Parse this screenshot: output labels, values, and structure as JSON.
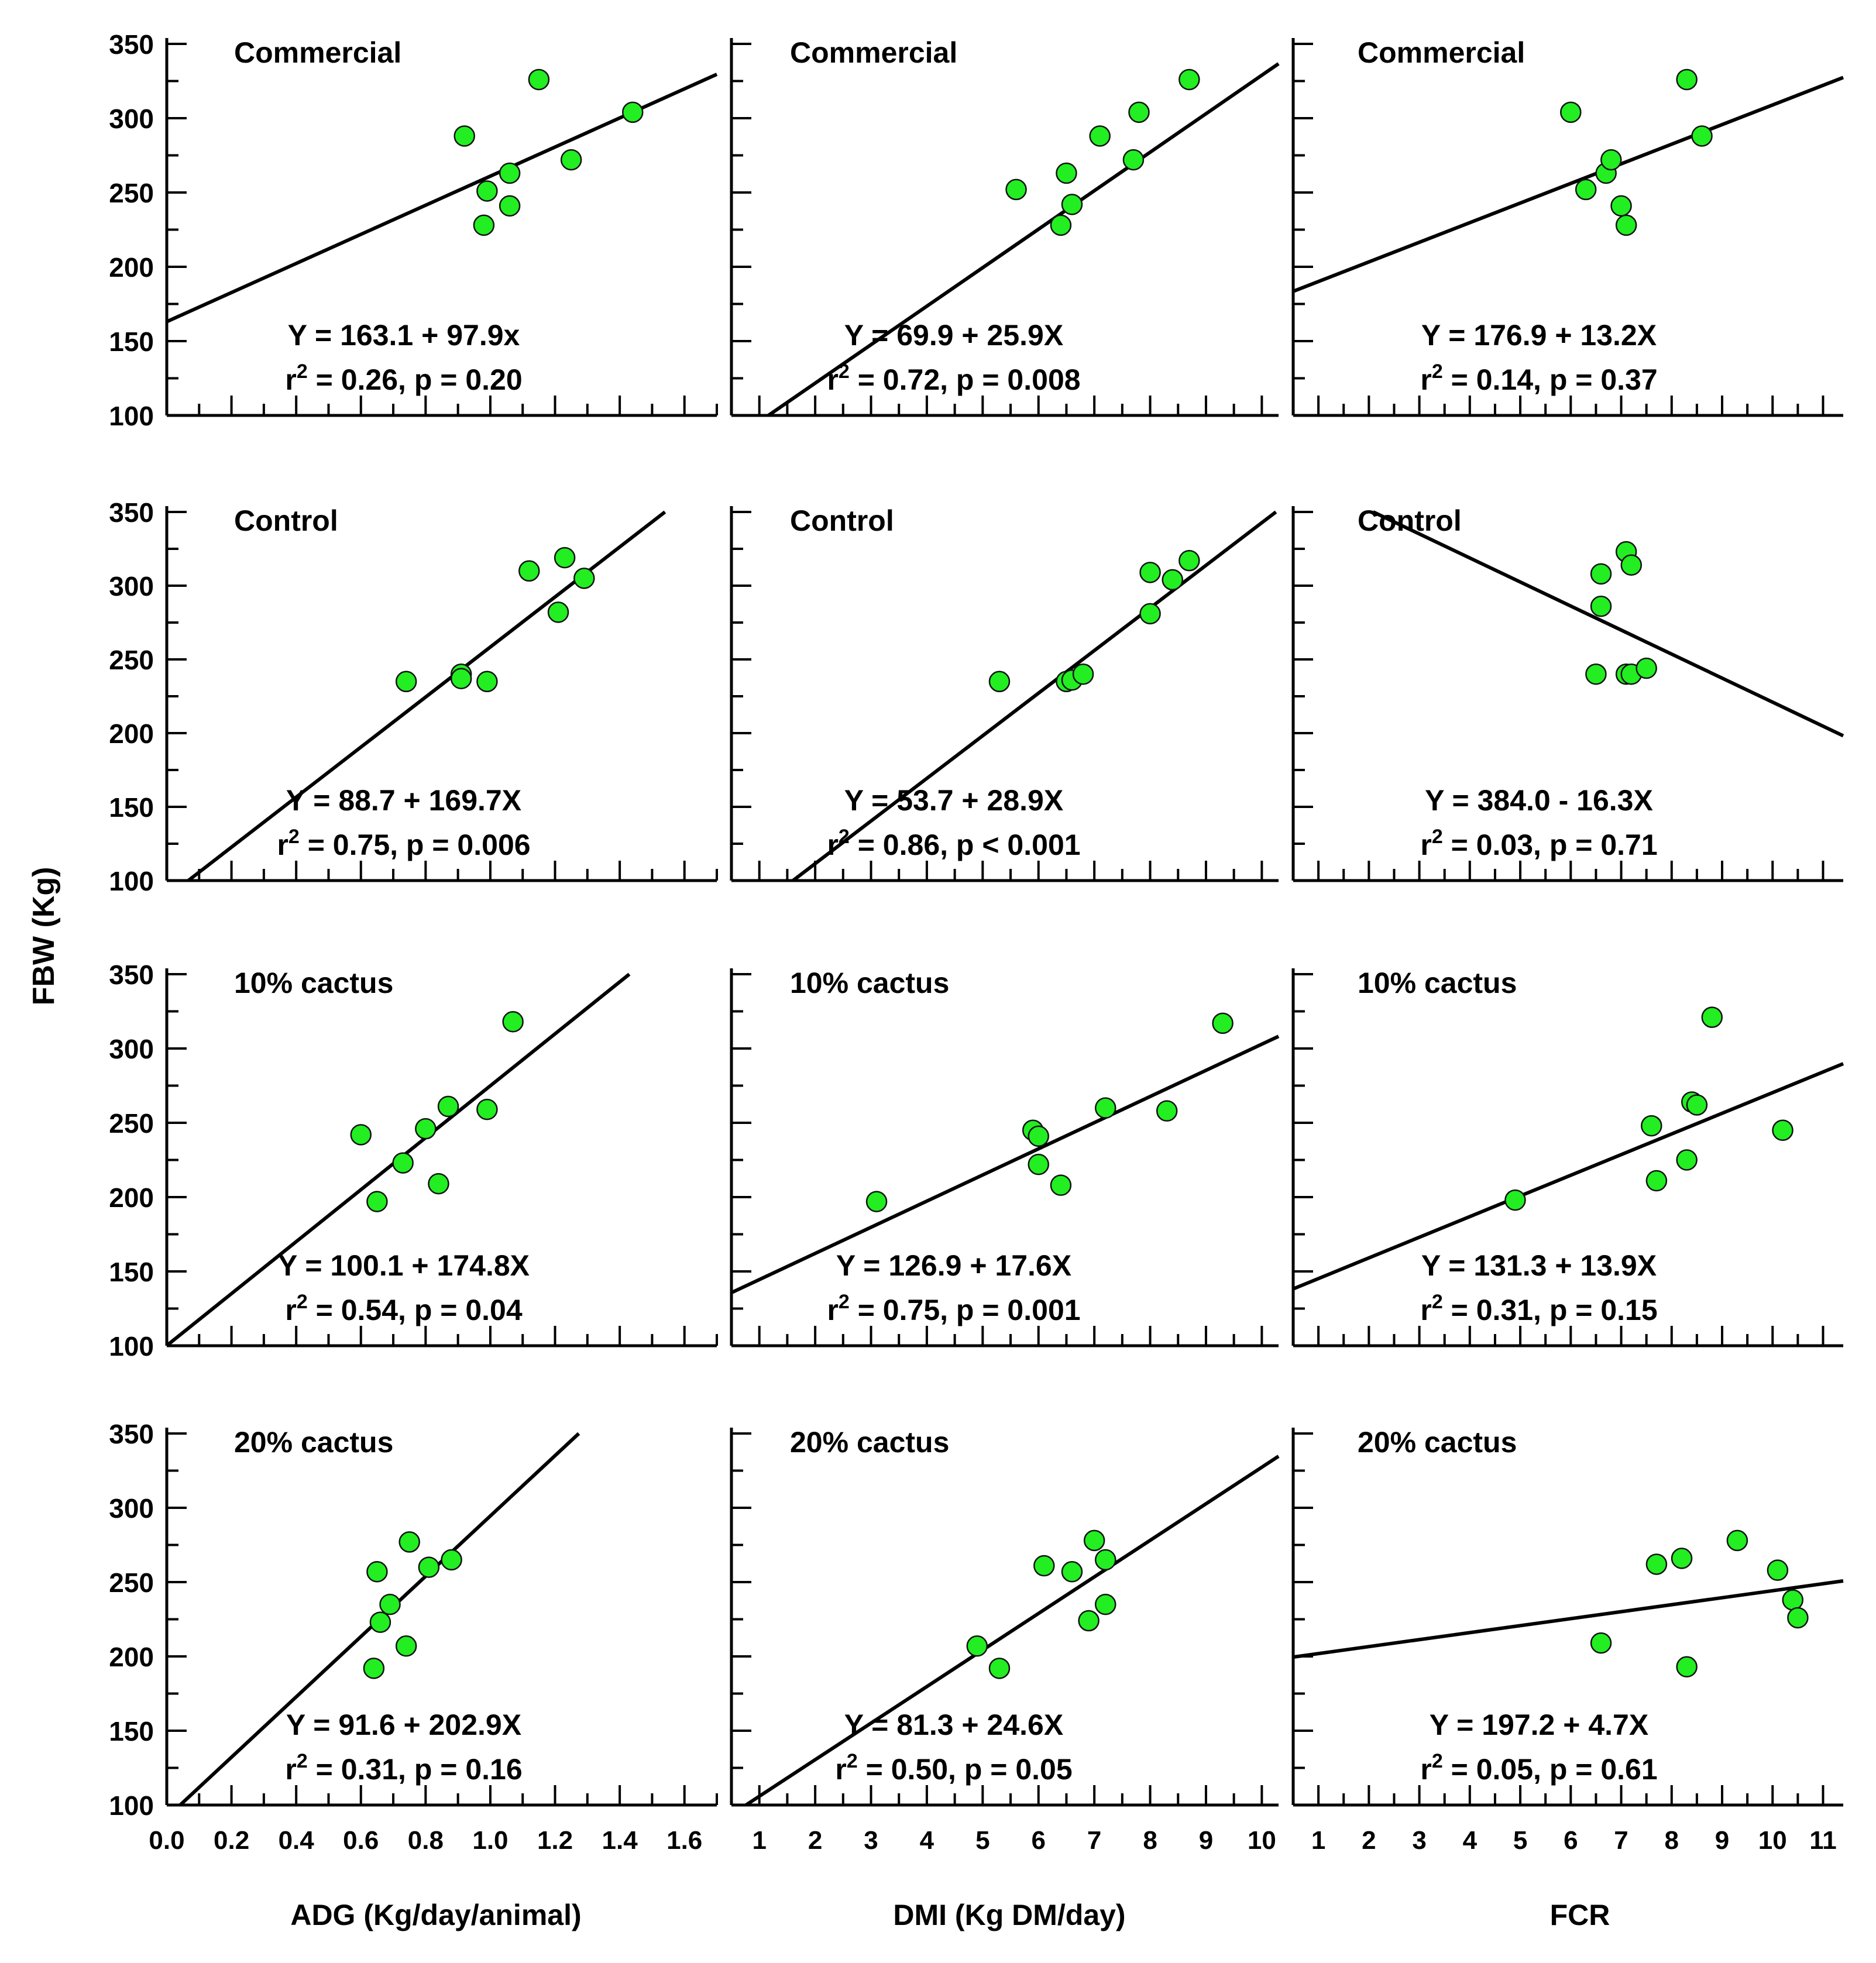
{
  "figure": {
    "y_axis_label": "FBW (Kg)",
    "x_axis_labels": [
      "ADG (Kg/day/animal)",
      "DMI (Kg DM/day)",
      "FCR"
    ]
  },
  "chart_data": [
    {
      "type": "scatter",
      "row": 0,
      "col": 0,
      "title": "Commercial",
      "equation": "Y = 163.1 + 97.9x",
      "stats": "= 0.26, p = 0.20",
      "r_label": "r",
      "sup": "2",
      "ylim": [
        100,
        350
      ],
      "xlim": [
        0,
        1.7
      ],
      "yticks": [
        100,
        150,
        200,
        250,
        300,
        350
      ],
      "intercept": 163.1,
      "slope": 97.9,
      "x": [
        0.92,
        0.99,
        0.98,
        1.06,
        1.06,
        1.15,
        1.25,
        1.44
      ],
      "y": [
        288,
        251,
        228,
        241,
        263,
        326,
        272,
        304
      ]
    },
    {
      "type": "scatter",
      "row": 0,
      "col": 1,
      "title": "Commercial",
      "equation": "Y = 69.9 + 25.9X",
      "stats": "= 0.72, p = 0.008",
      "r_label": "r",
      "sup": "2",
      "ylim": [
        100,
        350
      ],
      "xlim": [
        0.5,
        10.3
      ],
      "yticks": [],
      "intercept": 69.9,
      "slope": 25.9,
      "x": [
        5.6,
        6.4,
        6.5,
        6.6,
        7.1,
        7.7,
        7.8,
        8.7
      ],
      "y": [
        252,
        228,
        263,
        242,
        288,
        272,
        304,
        326
      ]
    },
    {
      "type": "scatter",
      "row": 0,
      "col": 2,
      "title": "Commercial",
      "equation": "Y = 176.9 + 13.2X",
      "stats": "= 0.14, p = 0.37",
      "r_label": "r",
      "sup": "2",
      "ylim": [
        100,
        350
      ],
      "xlim": [
        0.5,
        11.4
      ],
      "yticks": [],
      "intercept": 176.9,
      "slope": 13.2,
      "x": [
        6.0,
        6.3,
        6.7,
        6.8,
        7.0,
        7.1,
        8.3,
        8.6
      ],
      "y": [
        304,
        252,
        263,
        272,
        241,
        228,
        326,
        288
      ]
    },
    {
      "type": "scatter",
      "row": 1,
      "col": 0,
      "title": "Control",
      "equation": "Y = 88.7 + 169.7X",
      "stats": "= 0.75, p = 0.006",
      "r_label": "r",
      "sup": "2",
      "ylim": [
        100,
        350
      ],
      "xlim": [
        0,
        1.7
      ],
      "yticks": [
        100,
        150,
        200,
        250,
        300,
        350
      ],
      "intercept": 88.7,
      "slope": 169.7,
      "x": [
        0.74,
        0.91,
        0.91,
        0.99,
        1.12,
        1.21,
        1.23,
        1.29
      ],
      "y": [
        235,
        240,
        237,
        235,
        310,
        282,
        319,
        305
      ]
    },
    {
      "type": "scatter",
      "row": 1,
      "col": 1,
      "title": "Control",
      "equation": "Y = 53.7 + 28.9X",
      "stats": "= 0.86, p < 0.001",
      "r_label": "r",
      "sup": "2",
      "ylim": [
        100,
        350
      ],
      "xlim": [
        0.5,
        10.3
      ],
      "yticks": [],
      "intercept": 53.7,
      "slope": 28.9,
      "x": [
        5.3,
        6.5,
        6.6,
        6.8,
        8.0,
        8.0,
        8.4,
        8.7
      ],
      "y": [
        235,
        235,
        236,
        240,
        281,
        309,
        304,
        317
      ]
    },
    {
      "type": "scatter",
      "row": 1,
      "col": 2,
      "title": "Control",
      "equation": "Y = 384.0 - 16.3X",
      "stats": "= 0.03, p = 0.71",
      "r_label": "r",
      "sup": "2",
      "ylim": [
        100,
        350
      ],
      "xlim": [
        0.5,
        11.4
      ],
      "yticks": [],
      "intercept": 384.0,
      "slope": -16.3,
      "x": [
        6.5,
        6.6,
        6.6,
        7.1,
        7.1,
        7.2,
        7.2,
        7.5
      ],
      "y": [
        240,
        308,
        286,
        323,
        240,
        314,
        240,
        244
      ]
    },
    {
      "type": "scatter",
      "row": 2,
      "col": 0,
      "title": "10% cactus",
      "equation": "Y = 100.1 + 174.8X",
      "stats": "= 0.54, p = 0.04",
      "r_label": "r",
      "sup": "2",
      "ylim": [
        100,
        350
      ],
      "xlim": [
        0,
        1.7
      ],
      "yticks": [
        100,
        150,
        200,
        250,
        300,
        350
      ],
      "intercept": 100.1,
      "slope": 174.8,
      "x": [
        0.6,
        0.65,
        0.73,
        0.8,
        0.84,
        0.87,
        0.99,
        1.07
      ],
      "y": [
        242,
        197,
        223,
        246,
        209,
        261,
        259,
        318
      ]
    },
    {
      "type": "scatter",
      "row": 2,
      "col": 1,
      "title": "10% cactus",
      "equation": "Y = 126.9 + 17.6X",
      "stats": "= 0.75, p = 0.001",
      "r_label": "r",
      "sup": "2",
      "ylim": [
        100,
        350
      ],
      "xlim": [
        0.5,
        10.3
      ],
      "yticks": [],
      "intercept": 126.9,
      "slope": 17.6,
      "x": [
        3.1,
        5.9,
        6.0,
        6.0,
        6.4,
        7.2,
        8.3,
        9.3
      ],
      "y": [
        197,
        245,
        241,
        222,
        208,
        260,
        258,
        317
      ]
    },
    {
      "type": "scatter",
      "row": 2,
      "col": 2,
      "title": "10% cactus",
      "equation": "Y = 131.3 + 13.9X",
      "stats": "= 0.31, p = 0.15",
      "r_label": "r",
      "sup": "2",
      "ylim": [
        100,
        350
      ],
      "xlim": [
        0.5,
        11.4
      ],
      "yticks": [],
      "intercept": 131.3,
      "slope": 13.9,
      "x": [
        4.9,
        7.6,
        7.7,
        8.3,
        8.4,
        8.5,
        8.8,
        10.2
      ],
      "y": [
        198,
        248,
        211,
        225,
        264,
        262,
        321,
        245
      ]
    },
    {
      "type": "scatter",
      "row": 3,
      "col": 0,
      "title": "20% cactus",
      "equation": "Y = 91.6 + 202.9X",
      "stats": "= 0.31, p = 0.16",
      "r_label": "r",
      "sup": "2",
      "ylim": [
        100,
        350
      ],
      "xlim": [
        0,
        1.7
      ],
      "yticks": [
        100,
        150,
        200,
        250,
        300,
        350
      ],
      "intercept": 91.6,
      "slope": 202.9,
      "x": [
        0.64,
        0.65,
        0.66,
        0.69,
        0.74,
        0.75,
        0.81,
        0.88
      ],
      "y": [
        192,
        257,
        223,
        235,
        207,
        277,
        260,
        265
      ]
    },
    {
      "type": "scatter",
      "row": 3,
      "col": 1,
      "title": "20% cactus",
      "equation": "Y = 81.3 + 24.6X",
      "stats": "= 0.50, p = 0.05",
      "r_label": "r",
      "sup": "2",
      "ylim": [
        100,
        350
      ],
      "xlim": [
        0.5,
        10.3
      ],
      "yticks": [],
      "intercept": 81.3,
      "slope": 24.6,
      "x": [
        4.9,
        5.3,
        6.1,
        6.6,
        6.9,
        7.0,
        7.2,
        7.2
      ],
      "y": [
        207,
        192,
        261,
        257,
        224,
        278,
        235,
        265
      ]
    },
    {
      "type": "scatter",
      "row": 3,
      "col": 2,
      "title": "20% cactus",
      "equation": "Y = 197.2 + 4.7X",
      "stats": "= 0.05, p = 0.61",
      "r_label": "r",
      "sup": "2",
      "ylim": [
        100,
        350
      ],
      "xlim": [
        0.5,
        11.4
      ],
      "yticks": [],
      "intercept": 197.2,
      "slope": 4.7,
      "x": [
        6.6,
        7.7,
        8.2,
        8.3,
        9.3,
        10.1,
        10.4,
        10.5
      ],
      "y": [
        209,
        262,
        266,
        193,
        278,
        258,
        238,
        226
      ]
    }
  ],
  "x_axes": [
    {
      "col": 0,
      "xlim": [
        0,
        1.7
      ],
      "ticks": [
        0,
        0.2,
        0.4,
        0.6,
        0.8,
        1.0,
        1.2,
        1.4,
        1.6
      ],
      "labels": [
        "0.0",
        "0.2",
        "0.4",
        "0.6",
        "0.8",
        "1.0",
        "1.2",
        "1.4",
        "1.6"
      ]
    },
    {
      "col": 1,
      "xlim": [
        0.5,
        10.3
      ],
      "ticks": [
        1,
        2,
        3,
        4,
        5,
        6,
        7,
        8,
        9,
        10
      ],
      "labels": [
        "1",
        "2",
        "3",
        "4",
        "5",
        "6",
        "7",
        "8",
        "9",
        "10"
      ]
    },
    {
      "col": 2,
      "xlim": [
        0.5,
        11.4
      ],
      "ticks": [
        1,
        2,
        3,
        4,
        5,
        6,
        7,
        8,
        9,
        10,
        11
      ],
      "labels": [
        "1",
        "2",
        "3",
        "4",
        "5",
        "6",
        "7",
        "8",
        "9",
        "10",
        "11"
      ]
    }
  ],
  "style": {
    "point_fill": "#22ee22",
    "point_stroke": "#111111",
    "line_color": "#000000",
    "background": "#ffffff"
  }
}
